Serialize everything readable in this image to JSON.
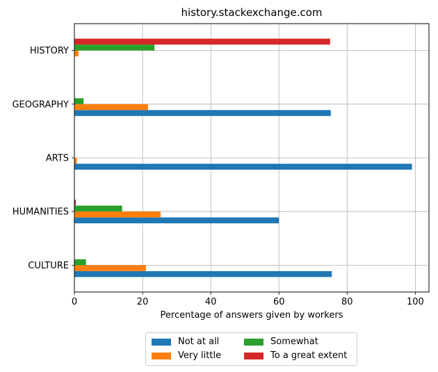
{
  "chart_data": {
    "type": "bar",
    "orientation": "horizontal",
    "title": "history.stackexchange.com",
    "xlabel": "Percentage of answers given by workers",
    "ylabel": "",
    "xlim": [
      0,
      104
    ],
    "xticks": [
      "0",
      "20",
      "40",
      "60",
      "80",
      "100"
    ],
    "grid": true,
    "legend_position": "bottom-center",
    "categories": [
      "CULTURE",
      "HUMANITIES",
      "ARTS",
      "GEOGRAPHY",
      "HISTORY"
    ],
    "series": [
      {
        "name": "Not at all",
        "color": "#1f77b4",
        "values": [
          75.5,
          60.0,
          99.0,
          75.2,
          0.0
        ]
      },
      {
        "name": "Very little",
        "color": "#ff7f0e",
        "values": [
          21.0,
          25.3,
          0.7,
          21.6,
          1.2
        ]
      },
      {
        "name": "Somewhat",
        "color": "#2ca02c",
        "values": [
          3.4,
          14.0,
          0.0,
          2.7,
          23.5
        ]
      },
      {
        "name": "To a great extent",
        "color": "#d62728",
        "values": [
          0.0,
          0.4,
          0.0,
          0.0,
          75.0
        ]
      }
    ]
  }
}
